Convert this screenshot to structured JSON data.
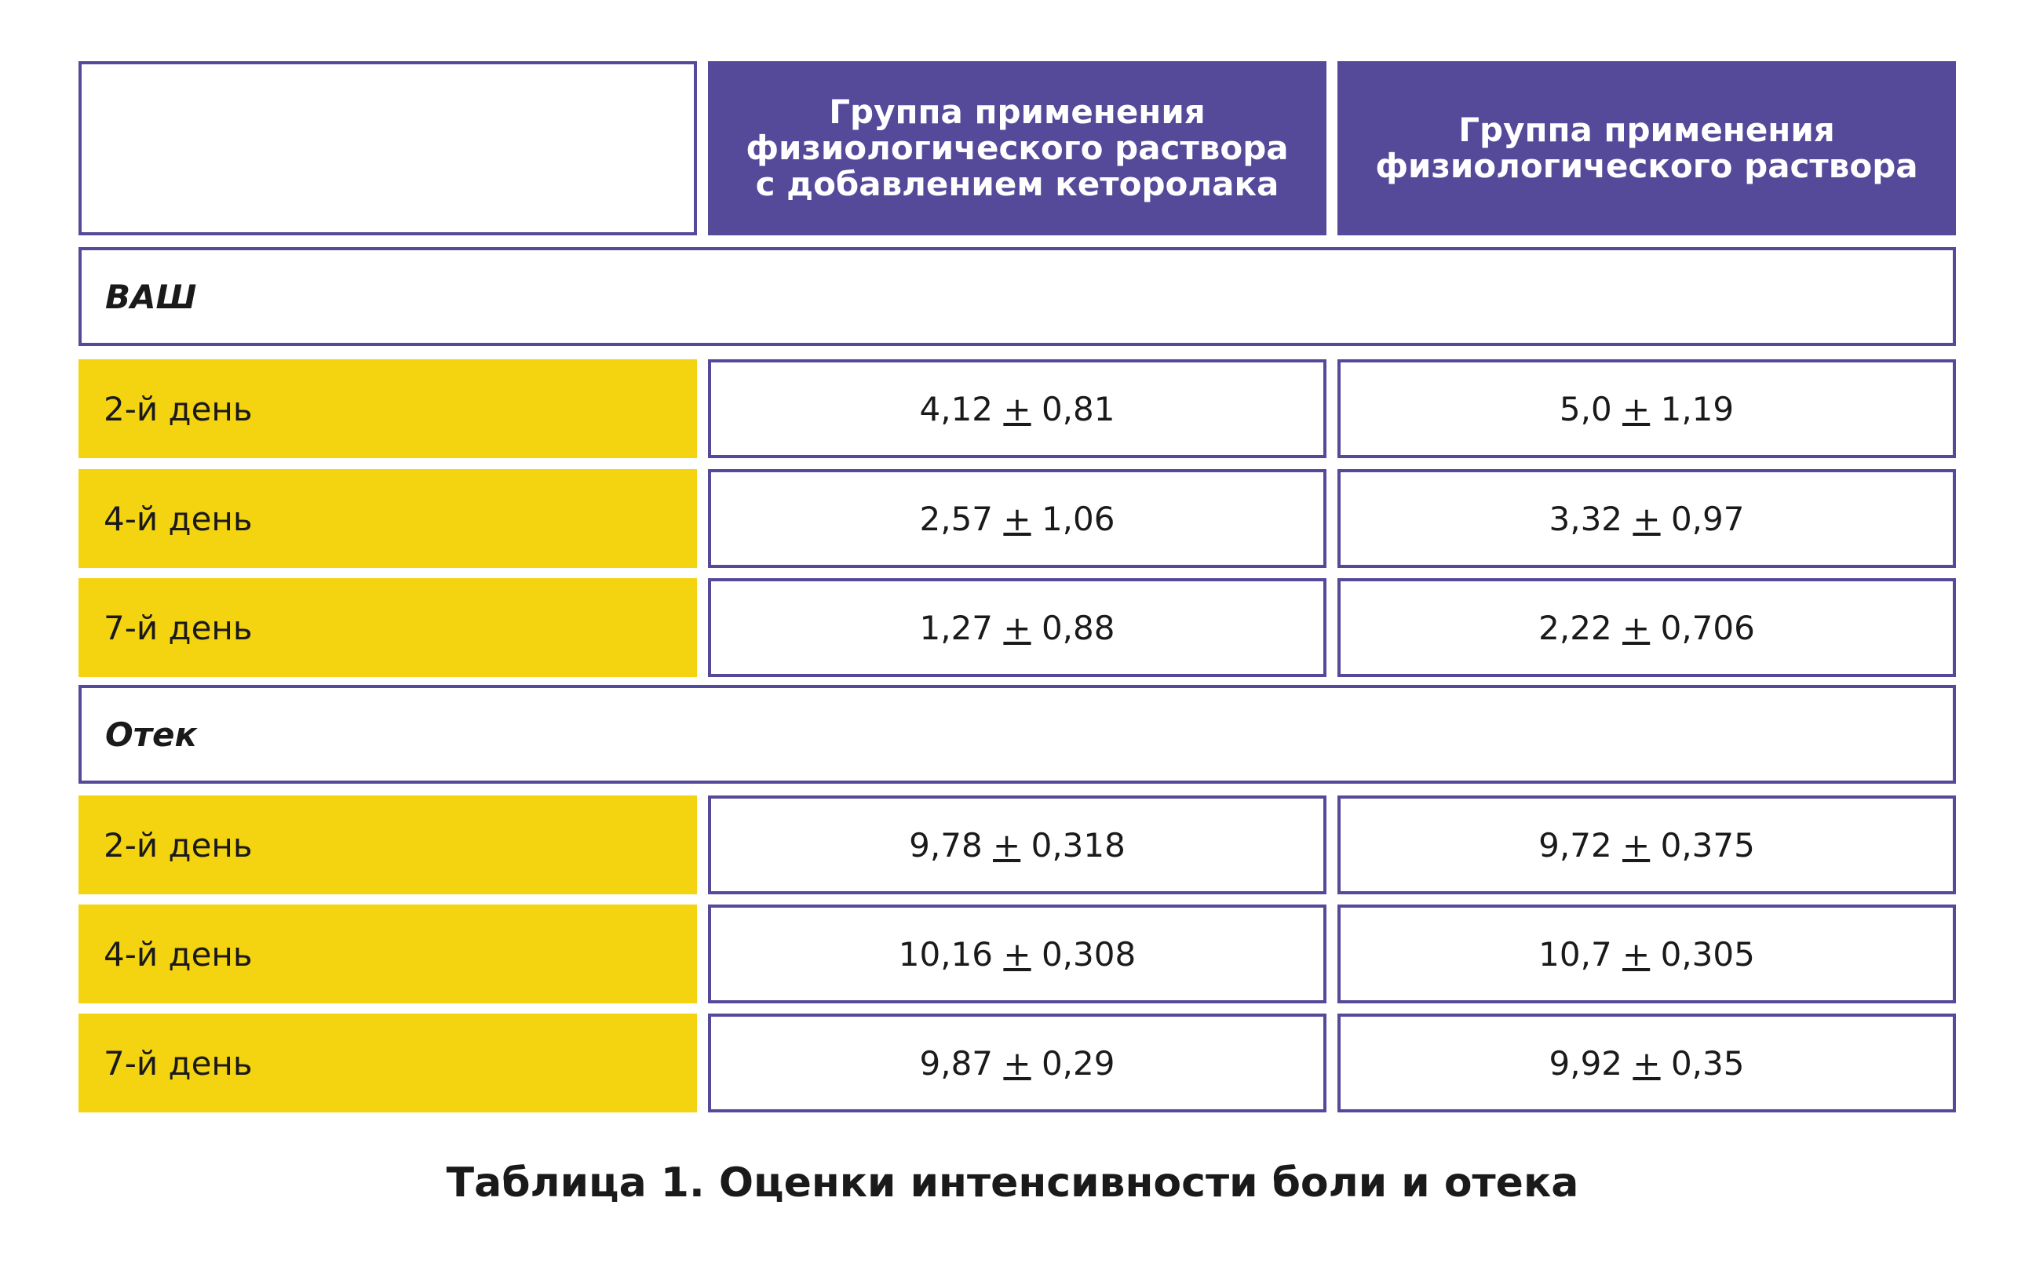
{
  "table": {
    "header": {
      "corner": "",
      "col1": "Группа применения физиологического раствора с добавлением кеторолака",
      "col2": "Группа применения физиологического раствора"
    },
    "sections": [
      {
        "title": "ВАШ",
        "rows": [
          {
            "label": "2-й день",
            "col1": {
              "mean": "4,12",
              "pm": "+",
              "sd": "0,81"
            },
            "col2": {
              "mean": "5,0",
              "pm": "+",
              "sd": "1,19"
            }
          },
          {
            "label": "4-й день",
            "col1": {
              "mean": "2,57",
              "pm": "+",
              "sd": "1,06"
            },
            "col2": {
              "mean": "3,32",
              "pm": "+",
              "sd": "0,97"
            }
          },
          {
            "label": "7-й день",
            "col1": {
              "mean": "1,27",
              "pm": "+",
              "sd": "0,88"
            },
            "col2": {
              "mean": "2,22",
              "pm": "+",
              "sd": "0,706"
            }
          }
        ]
      },
      {
        "title": "Отек",
        "rows": [
          {
            "label": "2-й день",
            "col1": {
              "mean": "9,78",
              "pm": "+",
              "sd": "0,318"
            },
            "col2": {
              "mean": "9,72",
              "pm": "+",
              "sd": "0,375"
            }
          },
          {
            "label": "4-й день",
            "col1": {
              "mean": "10,16",
              "pm": "+",
              "sd": "0,308"
            },
            "col2": {
              "mean": "10,7",
              "pm": "+",
              "sd": "0,305"
            }
          },
          {
            "label": "7-й день",
            "col1": {
              "mean": "9,87",
              "pm": "+",
              "sd": "0,29"
            },
            "col2": {
              "mean": "9,92",
              "pm": "+",
              "sd": "0,35"
            }
          }
        ]
      }
    ]
  },
  "caption": "Таблица 1. Оценки интенсивности боли и отека",
  "colors": {
    "header_bg": "#55499a",
    "border": "#55499a",
    "label_bg": "#f4d311",
    "text": "#1a1a1a"
  }
}
